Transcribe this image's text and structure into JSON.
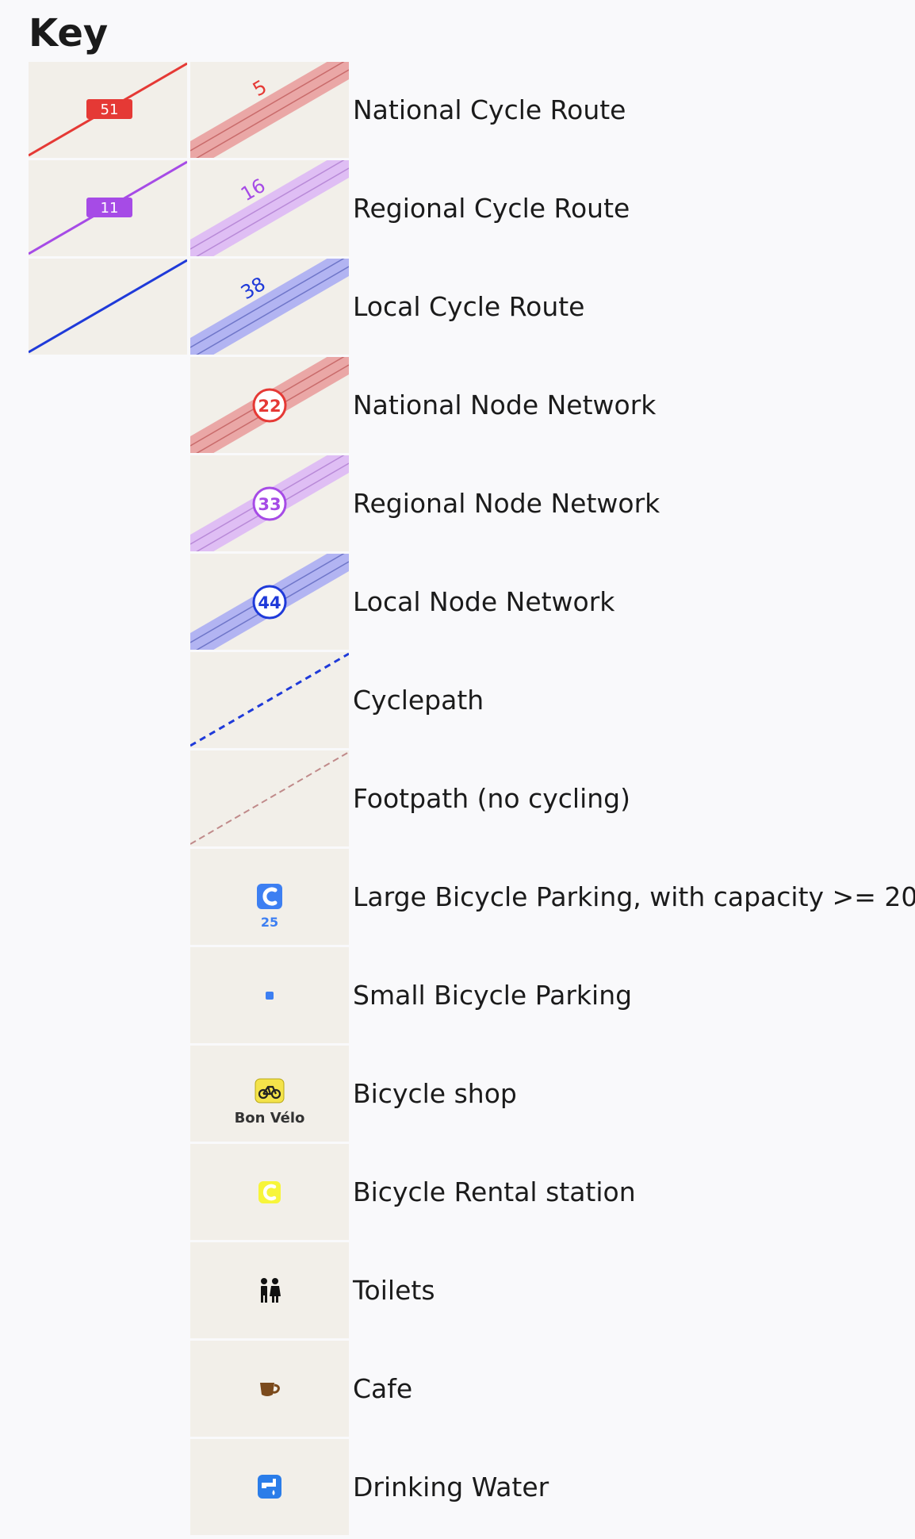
{
  "heading": "Key",
  "colors": {
    "national": "#e53935",
    "regional": "#a64be6",
    "local": "#1f3ad9",
    "background": "#f2efe9"
  },
  "rows": [
    {
      "label": "National Cycle Route",
      "route_ref": "51",
      "overlay_ref": "5"
    },
    {
      "label": "Regional Cycle Route",
      "route_ref": "11",
      "overlay_ref": "16"
    },
    {
      "label": "Local Cycle Route",
      "overlay_ref": "38"
    },
    {
      "label": "National Node Network",
      "node_ref": "22"
    },
    {
      "label": "Regional Node Network",
      "node_ref": "33"
    },
    {
      "label": "Local Node Network",
      "node_ref": "44"
    },
    {
      "label": "Cyclepath"
    },
    {
      "label": "Footpath (no cycling)"
    },
    {
      "label": "Large Bicycle Parking, with capacity >= 20",
      "capacity": "25"
    },
    {
      "label": "Small Bicycle Parking"
    },
    {
      "label": "Bicycle shop",
      "shop_name": "Bon Vélo"
    },
    {
      "label": "Bicycle Rental station"
    },
    {
      "label": "Toilets"
    },
    {
      "label": "Cafe"
    },
    {
      "label": "Drinking Water"
    }
  ]
}
